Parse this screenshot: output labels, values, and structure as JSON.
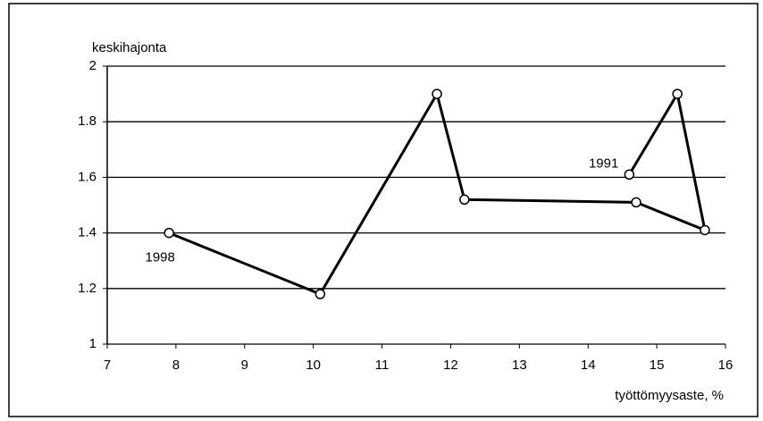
{
  "chart_data": {
    "type": "line",
    "y_label": "keskihajonta",
    "x_label": "työttömyysaste, %",
    "annotations": [
      "1991",
      "1998"
    ],
    "series": [
      {
        "color": "#000000",
        "x": [
          14.6,
          15.3,
          15.7,
          14.7,
          12.2,
          11.8,
          10.1,
          7.9
        ],
        "values": [
          1.61,
          1.9,
          1.41,
          1.51,
          1.52,
          1.9,
          1.18,
          1.4
        ]
      }
    ],
    "xlim": [
      7,
      16
    ],
    "xticks": [
      7,
      8,
      9,
      10,
      11,
      12,
      13,
      14,
      15,
      16
    ],
    "ylim": [
      1,
      2
    ],
    "yticks": [
      1,
      1.2,
      1.4,
      1.6,
      1.8,
      2
    ],
    "grid": true
  }
}
